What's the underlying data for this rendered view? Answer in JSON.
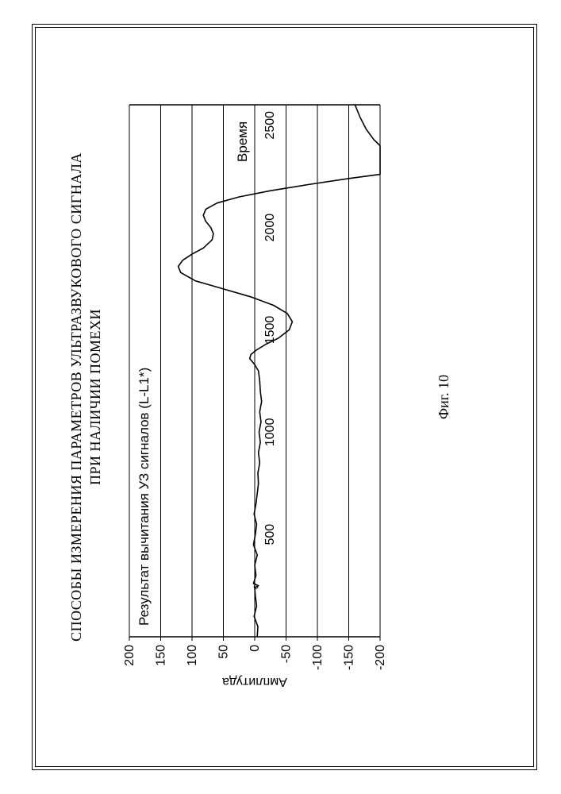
{
  "doc_title_line1": "СПОСОБЫ ИЗМЕРЕНИЯ ПАРАМЕТРОВ УЛЬТРАЗВУКОВОГО СИГНАЛА",
  "doc_title_line2": "ПРИ НАЛИЧИИ ПОМЕХИ",
  "figure_caption": "Фиг. 10",
  "chart": {
    "type": "line",
    "in_chart_title": "Результат вычитания УЗ сигналов (L-L1*)",
    "x_axis_label_inside": "Время",
    "y_axis_label": "Амплитуда",
    "xlim": [
      0,
      2600
    ],
    "ylim": [
      -200,
      200
    ],
    "x_ticks": [
      500,
      1000,
      1500,
      2000,
      2500
    ],
    "y_ticks": [
      -200,
      -150,
      -100,
      -50,
      0,
      50,
      100,
      150,
      200
    ],
    "y_grid": [
      -200,
      -150,
      -100,
      -50,
      0,
      50,
      100,
      150,
      200
    ],
    "grid_color": "#000000",
    "grid_width": 1,
    "line_color": "#000000",
    "line_width": 1.6,
    "background_color": "#ffffff",
    "tick_fontsize": 16,
    "label_fontsize": 16,
    "series": [
      {
        "x": 0,
        "y": -4
      },
      {
        "x": 50,
        "y": -5
      },
      {
        "x": 100,
        "y": 1
      },
      {
        "x": 150,
        "y": -3
      },
      {
        "x": 200,
        "y": -1
      },
      {
        "x": 240,
        "y": 0
      },
      {
        "x": 250,
        "y": -6
      },
      {
        "x": 260,
        "y": 2
      },
      {
        "x": 300,
        "y": -2
      },
      {
        "x": 350,
        "y": 0
      },
      {
        "x": 400,
        "y": -4
      },
      {
        "x": 450,
        "y": 2
      },
      {
        "x": 500,
        "y": -1
      },
      {
        "x": 550,
        "y": -3
      },
      {
        "x": 600,
        "y": 1
      },
      {
        "x": 650,
        "y": -2
      },
      {
        "x": 700,
        "y": -4
      },
      {
        "x": 750,
        "y": -6
      },
      {
        "x": 800,
        "y": -5
      },
      {
        "x": 850,
        "y": -8
      },
      {
        "x": 900,
        "y": -6
      },
      {
        "x": 950,
        "y": -9
      },
      {
        "x": 1000,
        "y": -7
      },
      {
        "x": 1050,
        "y": -10
      },
      {
        "x": 1100,
        "y": -8
      },
      {
        "x": 1150,
        "y": -11
      },
      {
        "x": 1200,
        "y": -9
      },
      {
        "x": 1250,
        "y": -8
      },
      {
        "x": 1300,
        "y": -6
      },
      {
        "x": 1330,
        "y": 0
      },
      {
        "x": 1360,
        "y": 8
      },
      {
        "x": 1380,
        "y": 6
      },
      {
        "x": 1400,
        "y": -2
      },
      {
        "x": 1430,
        "y": -18
      },
      {
        "x": 1460,
        "y": -38
      },
      {
        "x": 1500,
        "y": -55
      },
      {
        "x": 1540,
        "y": -60
      },
      {
        "x": 1580,
        "y": -52
      },
      {
        "x": 1620,
        "y": -30
      },
      {
        "x": 1660,
        "y": 5
      },
      {
        "x": 1700,
        "y": 50
      },
      {
        "x": 1740,
        "y": 95
      },
      {
        "x": 1780,
        "y": 118
      },
      {
        "x": 1810,
        "y": 122
      },
      {
        "x": 1840,
        "y": 115
      },
      {
        "x": 1870,
        "y": 100
      },
      {
        "x": 1900,
        "y": 82
      },
      {
        "x": 1940,
        "y": 68
      },
      {
        "x": 1970,
        "y": 66
      },
      {
        "x": 2000,
        "y": 70
      },
      {
        "x": 2030,
        "y": 78
      },
      {
        "x": 2060,
        "y": 82
      },
      {
        "x": 2090,
        "y": 78
      },
      {
        "x": 2120,
        "y": 60
      },
      {
        "x": 2150,
        "y": 25
      },
      {
        "x": 2180,
        "y": -25
      },
      {
        "x": 2210,
        "y": -85
      },
      {
        "x": 2240,
        "y": -150
      },
      {
        "x": 2260,
        "y": -200
      },
      {
        "x": 2400,
        "y": -200
      },
      {
        "x": 2430,
        "y": -190
      },
      {
        "x": 2480,
        "y": -178
      },
      {
        "x": 2540,
        "y": -168
      },
      {
        "x": 2600,
        "y": -160
      }
    ]
  }
}
